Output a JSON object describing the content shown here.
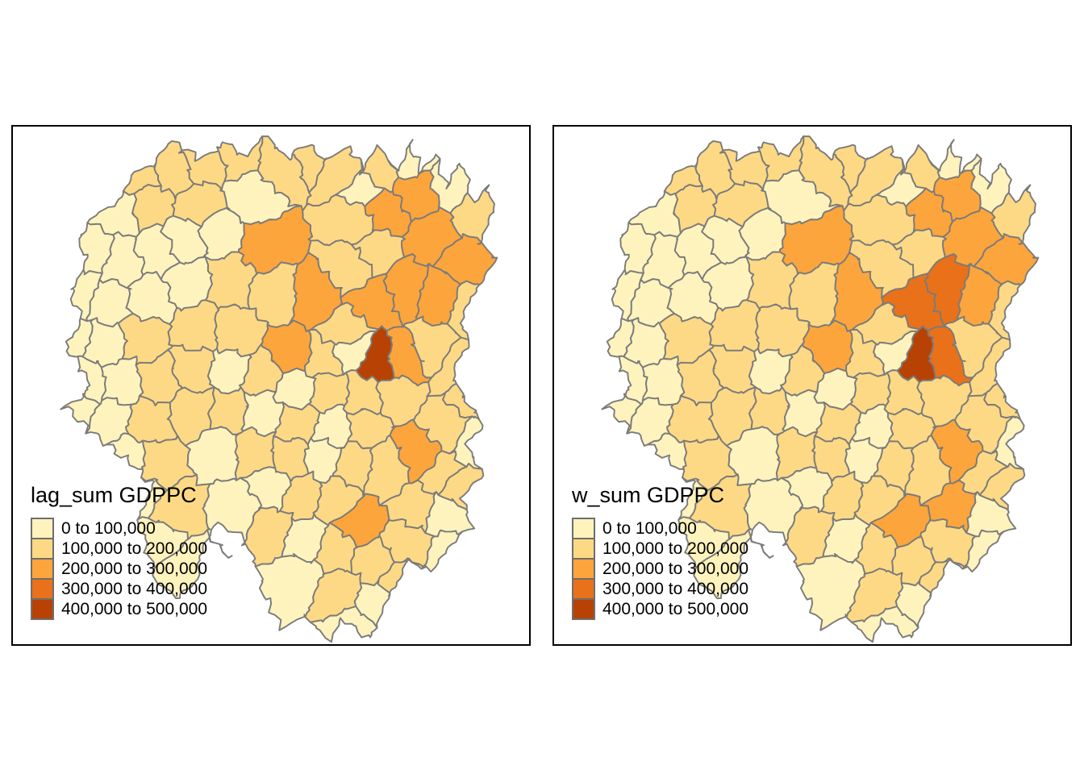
{
  "figure": {
    "background": "#FFFFFF",
    "frame_color": "#000000"
  },
  "panels": [
    {
      "id": "lag",
      "legend_title": "lag_sum GDPPC"
    },
    {
      "id": "w",
      "legend_title": "w_sum GDPPC"
    }
  ],
  "legend": {
    "classes": [
      {
        "label": "0 to 100,000",
        "color": "#FEF3BD"
      },
      {
        "label": "100,000 to 200,000",
        "color": "#FDD985"
      },
      {
        "label": "200,000 to 300,000",
        "color": "#FCA53C"
      },
      {
        "label": "300,000 to 400,000",
        "color": "#E8711A"
      },
      {
        "label": "400,000 to 500,000",
        "color": "#B74203"
      }
    ],
    "swatch_border_color": "#6E6E6E"
  },
  "style": {
    "county_border_color": "#7B7B7B"
  },
  "map_data": {
    "type": "choropleth",
    "value_classes": [
      "0 to 100,000",
      "100,000 to 200,000",
      "200,000 to 300,000",
      "300,000 to 400,000",
      "400,000 to 500,000"
    ],
    "outline": [
      [
        21,
        14
      ],
      [
        24,
        9
      ],
      [
        28,
        7
      ],
      [
        31,
        3
      ],
      [
        36,
        6
      ],
      [
        41,
        3
      ],
      [
        45,
        6
      ],
      [
        49,
        2
      ],
      [
        53,
        6
      ],
      [
        57,
        3
      ],
      [
        61,
        7
      ],
      [
        65,
        4
      ],
      [
        68,
        8
      ],
      [
        71,
        4
      ],
      [
        74,
        8
      ],
      [
        77,
        3
      ],
      [
        79,
        9
      ],
      [
        82,
        5
      ],
      [
        84,
        12
      ],
      [
        87,
        7
      ],
      [
        89,
        14
      ],
      [
        92,
        11
      ],
      [
        93,
        17
      ],
      [
        90,
        22
      ],
      [
        94,
        26
      ],
      [
        90,
        31
      ],
      [
        87,
        36
      ],
      [
        88,
        42
      ],
      [
        85,
        47
      ],
      [
        87,
        52
      ],
      [
        91,
        57
      ],
      [
        88,
        62
      ],
      [
        91,
        67
      ],
      [
        87,
        72
      ],
      [
        89,
        77
      ],
      [
        84,
        81
      ],
      [
        81,
        86
      ],
      [
        77,
        84
      ],
      [
        74,
        90
      ],
      [
        71,
        94
      ],
      [
        69,
        99
      ],
      [
        64,
        95
      ],
      [
        61,
        99
      ],
      [
        56,
        94
      ],
      [
        52,
        97
      ],
      [
        49,
        91
      ],
      [
        47,
        84
      ],
      [
        44,
        79
      ],
      [
        40,
        77
      ],
      [
        37,
        81
      ],
      [
        36,
        87
      ],
      [
        32,
        91
      ],
      [
        28,
        88
      ],
      [
        26,
        82
      ],
      [
        24,
        75
      ],
      [
        27,
        69
      ],
      [
        23,
        65
      ],
      [
        19,
        62
      ],
      [
        14,
        58
      ],
      [
        10,
        54
      ],
      [
        15,
        51
      ],
      [
        13,
        46
      ],
      [
        10,
        42
      ],
      [
        13,
        37
      ],
      [
        11,
        31
      ],
      [
        14,
        26
      ],
      [
        13,
        20
      ],
      [
        17,
        16
      ]
    ],
    "regions": [
      [
        25,
        9,
        2,
        2
      ],
      [
        31,
        9,
        2,
        2
      ],
      [
        20,
        16,
        1,
        1
      ],
      [
        27,
        15,
        2,
        2
      ],
      [
        15,
        24,
        1,
        1
      ],
      [
        21,
        26,
        1,
        1
      ],
      [
        28,
        24,
        1,
        1
      ],
      [
        13,
        32,
        1,
        1
      ],
      [
        19,
        34,
        1,
        1
      ],
      [
        26,
        33,
        1,
        1
      ],
      [
        11,
        41,
        1,
        1
      ],
      [
        18,
        42,
        1,
        1
      ],
      [
        25,
        41,
        2,
        2
      ],
      [
        14,
        49,
        1,
        1
      ],
      [
        21,
        49,
        1,
        1
      ],
      [
        28,
        49,
        2,
        2
      ],
      [
        12,
        55,
        1,
        1
      ],
      [
        19,
        57,
        1,
        1
      ],
      [
        26,
        57,
        2,
        2
      ],
      [
        22,
        64,
        1,
        1
      ],
      [
        28,
        65,
        2,
        2
      ],
      [
        25,
        71,
        1,
        1
      ],
      [
        31,
        74,
        2,
        2
      ],
      [
        28,
        80,
        1,
        1
      ],
      [
        33,
        85,
        1,
        1
      ],
      [
        37,
        7,
        2,
        2
      ],
      [
        44,
        5,
        2,
        2
      ],
      [
        46,
        14,
        1,
        1
      ],
      [
        52,
        7,
        2,
        2
      ],
      [
        58,
        5,
        2,
        2
      ],
      [
        63,
        8,
        2,
        2
      ],
      [
        36,
        15,
        2,
        2
      ],
      [
        33,
        22,
        1,
        1
      ],
      [
        40,
        20,
        1,
        1
      ],
      [
        49,
        23,
        3,
        3
      ],
      [
        42,
        30,
        2,
        2
      ],
      [
        51,
        32,
        2,
        2
      ],
      [
        34,
        30,
        1,
        1
      ],
      [
        36,
        39,
        2,
        2
      ],
      [
        43,
        40,
        2,
        2
      ],
      [
        68,
        12,
        1,
        1
      ],
      [
        71,
        9,
        2,
        2
      ],
      [
        76,
        6,
        1,
        1
      ],
      [
        66,
        18,
        2,
        2
      ],
      [
        72,
        16,
        3,
        3
      ],
      [
        78,
        13,
        3,
        3
      ],
      [
        85,
        11,
        1,
        1
      ],
      [
        90,
        17,
        2,
        2
      ],
      [
        81,
        21,
        3,
        3
      ],
      [
        88,
        26,
        3,
        3
      ],
      [
        70,
        24,
        2,
        2
      ],
      [
        66,
        27,
        2,
        2
      ],
      [
        58,
        33,
        3,
        3
      ],
      [
        70,
        33,
        3,
        4
      ],
      [
        76,
        31,
        3,
        4
      ],
      [
        83,
        33,
        3,
        3
      ],
      [
        89,
        35,
        2,
        2
      ],
      [
        64,
        40,
        2,
        2
      ],
      [
        54,
        44,
        3,
        3
      ],
      [
        60,
        45,
        2,
        2
      ],
      [
        65,
        43,
        1,
        1
      ],
      [
        70.5,
        45.5,
        5,
        5
      ],
      [
        76,
        45,
        3,
        4
      ],
      [
        81,
        43,
        2,
        2
      ],
      [
        86,
        47,
        2,
        2
      ],
      [
        89,
        52,
        2,
        2
      ],
      [
        35,
        47,
        2,
        2
      ],
      [
        42,
        47,
        1,
        1
      ],
      [
        48,
        48,
        2,
        2
      ],
      [
        55,
        51,
        1,
        1
      ],
      [
        61,
        51,
        2,
        2
      ],
      [
        68,
        52,
        2,
        2
      ],
      [
        74,
        52,
        2,
        2
      ],
      [
        35,
        55,
        2,
        2
      ],
      [
        42,
        55,
        2,
        2
      ],
      [
        48,
        55,
        1,
        1
      ],
      [
        55,
        57,
        2,
        2
      ],
      [
        62,
        58,
        1,
        1
      ],
      [
        68,
        58,
        2,
        2
      ],
      [
        79,
        63,
        3,
        3
      ],
      [
        84,
        58,
        2,
        2
      ],
      [
        89,
        61,
        1,
        1
      ],
      [
        40,
        62,
        1,
        1
      ],
      [
        47,
        63,
        2,
        2
      ],
      [
        54,
        64,
        2,
        2
      ],
      [
        60,
        64,
        1,
        1
      ],
      [
        66,
        65,
        2,
        2
      ],
      [
        72,
        66,
        2,
        2
      ],
      [
        83,
        67,
        2,
        2
      ],
      [
        50,
        70,
        1,
        1
      ],
      [
        56,
        71,
        2,
        2
      ],
      [
        62,
        72,
        2,
        2
      ],
      [
        67,
        77,
        3,
        3
      ],
      [
        78,
        74,
        2,
        3
      ],
      [
        84,
        75,
        1,
        1
      ],
      [
        87,
        70,
        2,
        2
      ],
      [
        44,
        74,
        1,
        1
      ],
      [
        50,
        78,
        2,
        2
      ],
      [
        57,
        80,
        1,
        1
      ],
      [
        63,
        82,
        2,
        2
      ],
      [
        70,
        84,
        2,
        2
      ],
      [
        76,
        80,
        2,
        2
      ],
      [
        55,
        87,
        1,
        1
      ],
      [
        64,
        90,
        2,
        2
      ],
      [
        70,
        92,
        1,
        1
      ],
      [
        75,
        88,
        2,
        2
      ],
      [
        85,
        82,
        1,
        1
      ],
      [
        66,
        97,
        1,
        1
      ]
    ]
  }
}
